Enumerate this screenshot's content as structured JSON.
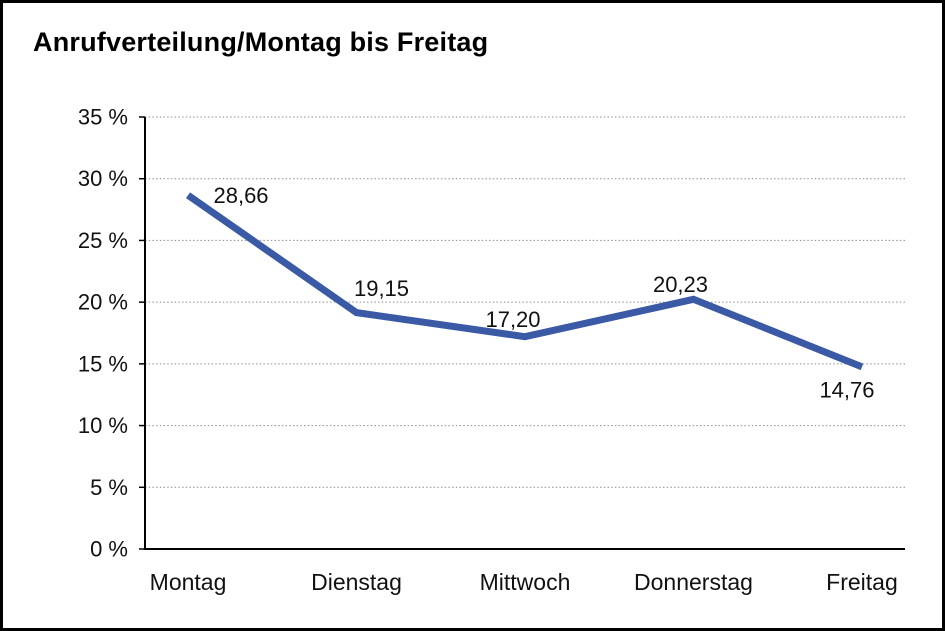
{
  "chart_data": {
    "type": "line",
    "title": "Anrufverteilung/Montag bis Freitag",
    "categories": [
      "Montag",
      "Dienstag",
      "Mittwoch",
      "Donnerstag",
      "Freitag"
    ],
    "values": [
      28.66,
      19.15,
      17.2,
      20.23,
      14.76
    ],
    "point_labels": [
      "28,66",
      "19,15",
      "17,20",
      "20,23",
      "14,76"
    ],
    "ylabel": "",
    "xlabel": "",
    "ylim": [
      0,
      35
    ],
    "ytick_step": 5,
    "ytick_labels": [
      "0 %",
      "5 %",
      "10 %",
      "15 %",
      "20 %",
      "25 %",
      "30 %",
      "35 %"
    ],
    "grid": "horizontal-dotted",
    "legend": "none",
    "colors": {
      "line": "#3A5AA5",
      "text": "#111111",
      "axis": "#000000",
      "grid": "#8C8C8C",
      "background": "#FFFFFF",
      "frame_border": "#000000"
    }
  }
}
